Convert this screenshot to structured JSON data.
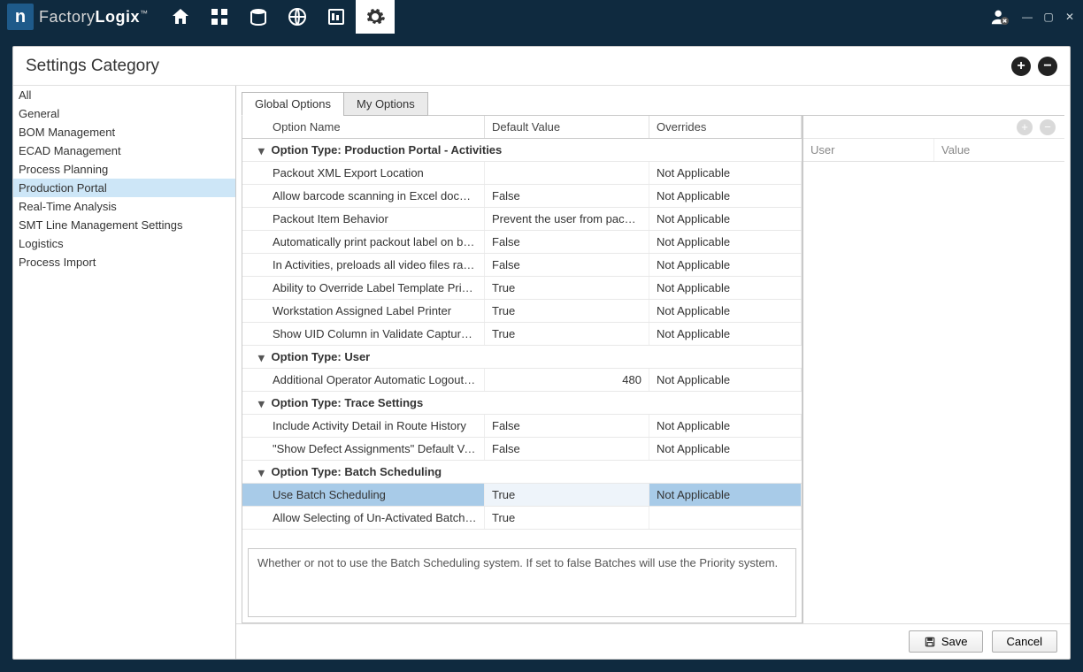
{
  "brand": {
    "pre": "Factory",
    "bold": "Logix"
  },
  "window": {
    "title": "Settings Category"
  },
  "sidebar": {
    "items": [
      {
        "label": "All"
      },
      {
        "label": "General"
      },
      {
        "label": "BOM Management"
      },
      {
        "label": "ECAD Management"
      },
      {
        "label": "Process Planning"
      },
      {
        "label": "Production Portal"
      },
      {
        "label": "Real-Time Analysis"
      },
      {
        "label": "SMT Line Management Settings"
      },
      {
        "label": "Logistics"
      },
      {
        "label": "Process Import"
      }
    ],
    "selected_index": 5
  },
  "tabs": {
    "items": [
      {
        "label": "Global Options"
      },
      {
        "label": "My Options"
      }
    ],
    "active_index": 0
  },
  "columns": {
    "c1": "Option Name",
    "c2": "Default Value",
    "c3": "Overrides"
  },
  "groups": [
    {
      "title": "Option Type: Production Portal - Activities",
      "rows": [
        {
          "name": "Packout XML Export Location",
          "value": "",
          "override": "Not Applicable"
        },
        {
          "name": "Allow barcode scanning in Excel document",
          "value": "False",
          "override": "Not Applicable"
        },
        {
          "name": "Packout Item Behavior",
          "value": "Prevent the user from packing i…",
          "override": "Not Applicable"
        },
        {
          "name": "Automatically print packout label on box co…",
          "value": "False",
          "override": "Not Applicable"
        },
        {
          "name": "In Activities, preloads all video files rather t…",
          "value": "False",
          "override": "Not Applicable"
        },
        {
          "name": "Ability to Override Label Template Printer",
          "value": "True",
          "override": "Not Applicable"
        },
        {
          "name": "Workstation Assigned Label Printer",
          "value": "True",
          "override": "Not Applicable"
        },
        {
          "name": "Show UID Column in Validate Captured Ma…",
          "value": "True",
          "override": "Not Applicable"
        }
      ]
    },
    {
      "title": "Option Type: User",
      "rows": [
        {
          "name": "Additional Operator Automatic Logout Time",
          "value": "480",
          "override": "Not Applicable",
          "numeric": true
        }
      ]
    },
    {
      "title": "Option Type: Trace Settings",
      "rows": [
        {
          "name": "Include Activity Detail in Route History",
          "value": "False",
          "override": "Not Applicable"
        },
        {
          "name": "\"Show Defect Assignments\" Default Value",
          "value": "False",
          "override": "Not Applicable"
        }
      ]
    },
    {
      "title": "Option Type: Batch Scheduling",
      "rows": [
        {
          "name": "Use Batch Scheduling",
          "value": "True",
          "override": "Not Applicable",
          "selected": true
        },
        {
          "name": "Allow Selecting of Un-Activated Batches",
          "value": "True",
          "override": ""
        }
      ]
    }
  ],
  "description": "Whether or not to use the Batch Scheduling system. If set to false Batches will use the Priority system.",
  "right_pane": {
    "h1": "User",
    "h2": "Value"
  },
  "footer": {
    "save": "Save",
    "cancel": "Cancel"
  }
}
